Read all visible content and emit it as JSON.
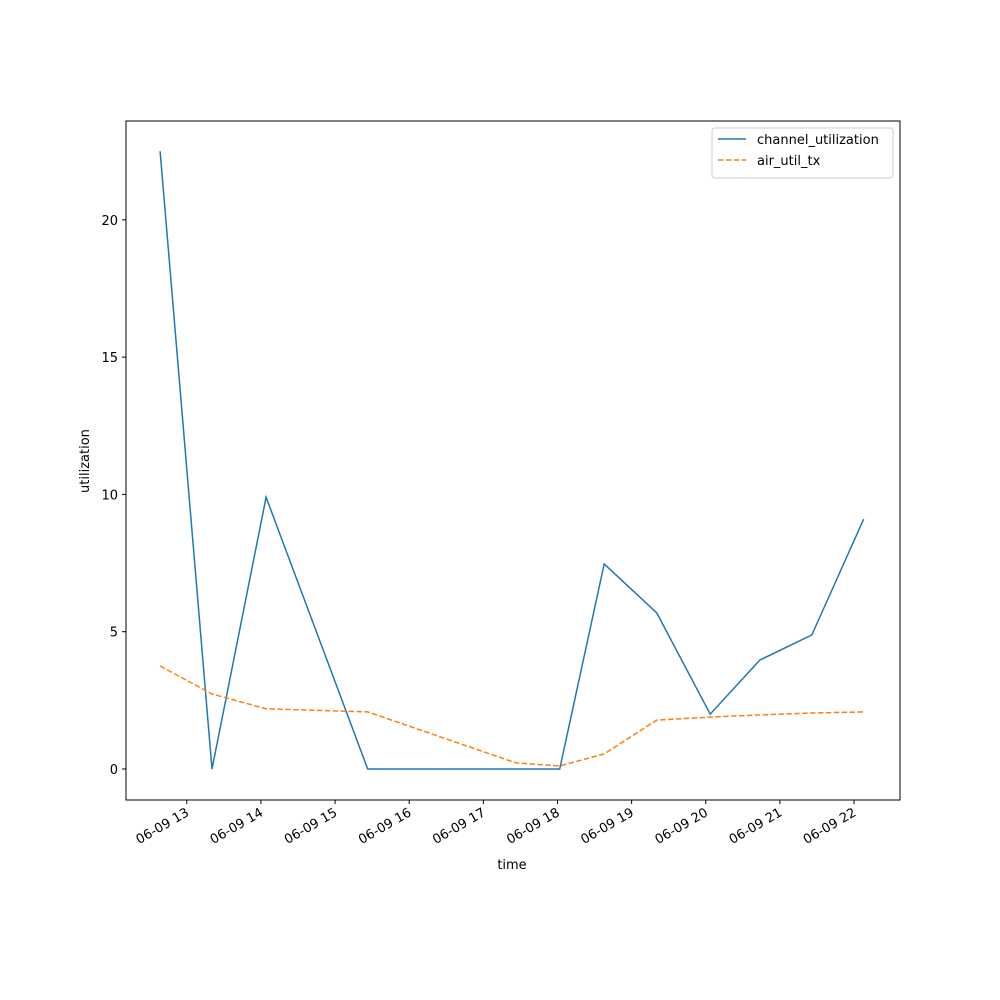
{
  "chart_data": {
    "type": "line",
    "x_label": "time",
    "y_label": "utilization",
    "x": [
      12.64,
      13.34,
      14.07,
      15.44,
      17.44,
      18.03,
      18.63,
      19.34,
      20.06,
      20.73,
      21.43,
      22.13
    ],
    "series": [
      {
        "name": "channel_utilization",
        "color": "#1f77b4",
        "dash": "solid",
        "values": [
          22.5,
          0,
          9.9,
          0,
          0,
          0,
          7.47,
          5.68,
          2.0,
          3.97,
          4.88,
          9.1
        ]
      },
      {
        "name": "air_util_tx",
        "color": "#ff7f0e",
        "dash": "dashed",
        "values": [
          3.75,
          2.73,
          2.19,
          2.08,
          0.22,
          0.11,
          0.55,
          1.78,
          1.89,
          1.97,
          2.04,
          2.08
        ]
      }
    ],
    "xlim": [
      12.18,
      22.62
    ],
    "xticks": [
      {
        "value": 13,
        "label": "06-09 13"
      },
      {
        "value": 14,
        "label": "06-09 14"
      },
      {
        "value": 15,
        "label": "06-09 15"
      },
      {
        "value": 16,
        "label": "06-09 16"
      },
      {
        "value": 17,
        "label": "06-09 17"
      },
      {
        "value": 18,
        "label": "06-09 18"
      },
      {
        "value": 19,
        "label": "06-09 19"
      },
      {
        "value": 20,
        "label": "06-09 20"
      },
      {
        "value": 21,
        "label": "06-09 21"
      },
      {
        "value": 22,
        "label": "06-09 22"
      }
    ],
    "ylim": [
      -1.13,
      23.6
    ],
    "yticks": [
      0,
      5,
      10,
      15,
      20
    ],
    "grid": false,
    "legend": "upper-right"
  }
}
